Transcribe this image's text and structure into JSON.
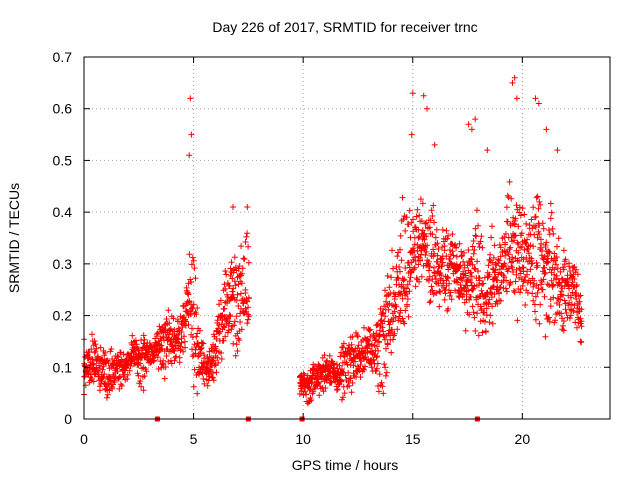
{
  "chart_data": {
    "type": "scatter",
    "title": "Day 226 of 2017, SRMTID for receiver trnc",
    "xlabel": "GPS time / hours",
    "ylabel": "SRMTID / TECUs",
    "xlim": [
      0,
      24
    ],
    "ylim": [
      0,
      0.7
    ],
    "xticks": [
      0,
      5,
      10,
      15,
      20
    ],
    "yticks": [
      0,
      0.1,
      0.2,
      0.3,
      0.4,
      0.5,
      0.6,
      0.7
    ],
    "ytick_labels": [
      "0",
      "0.1",
      "0.2",
      "0.3",
      "0.4",
      "0.5",
      "0.6",
      "0.7"
    ],
    "grid": true,
    "marker": "+",
    "color": "#ff0000",
    "gap_markers_x": [
      3.35,
      7.5,
      9.95,
      17.95
    ],
    "series": [
      {
        "name": "SRMTID",
        "segments": [
          {
            "x_start": 0.0,
            "x_end": 7.55,
            "interval_h": 0.01,
            "seed": 11,
            "envelope": [
              [
                0.0,
                0.09,
                0.07
              ],
              [
                0.5,
                0.1,
                0.05
              ],
              [
                1.5,
                0.09,
                0.05
              ],
              [
                2.5,
                0.11,
                0.05
              ],
              [
                3.5,
                0.13,
                0.06
              ],
              [
                4.3,
                0.16,
                0.08
              ],
              [
                4.8,
                0.22,
                0.12
              ],
              [
                5.2,
                0.14,
                0.08
              ],
              [
                5.6,
                0.1,
                0.05
              ],
              [
                6.2,
                0.18,
                0.07
              ],
              [
                6.7,
                0.25,
                0.1
              ],
              [
                7.3,
                0.22,
                0.09
              ],
              [
                7.55,
                0.2,
                0.08
              ]
            ]
          },
          {
            "x_start": 9.85,
            "x_end": 22.7,
            "interval_h": 0.01,
            "seed": 29,
            "envelope": [
              [
                9.85,
                0.07,
                0.03
              ],
              [
                10.5,
                0.08,
                0.04
              ],
              [
                11.5,
                0.1,
                0.05
              ],
              [
                12.5,
                0.12,
                0.05
              ],
              [
                13.5,
                0.16,
                0.07
              ],
              [
                14.2,
                0.24,
                0.1
              ],
              [
                14.8,
                0.28,
                0.12
              ],
              [
                15.5,
                0.3,
                0.12
              ],
              [
                16.5,
                0.28,
                0.11
              ],
              [
                17.5,
                0.27,
                0.11
              ],
              [
                18.5,
                0.29,
                0.12
              ],
              [
                19.5,
                0.33,
                0.14
              ],
              [
                20.5,
                0.32,
                0.13
              ],
              [
                21.5,
                0.28,
                0.12
              ],
              [
                22.2,
                0.24,
                0.1
              ],
              [
                22.7,
                0.18,
                0.08
              ]
            ]
          }
        ],
        "peaks": [
          [
            4.85,
            0.62
          ],
          [
            4.9,
            0.55
          ],
          [
            4.8,
            0.51
          ],
          [
            6.8,
            0.41
          ],
          [
            7.45,
            0.41
          ],
          [
            15.0,
            0.63
          ],
          [
            15.5,
            0.625
          ],
          [
            15.65,
            0.6
          ],
          [
            17.55,
            0.57
          ],
          [
            17.7,
            0.56
          ],
          [
            17.85,
            0.58
          ],
          [
            19.55,
            0.65
          ],
          [
            19.65,
            0.66
          ],
          [
            19.75,
            0.62
          ],
          [
            20.6,
            0.62
          ],
          [
            20.75,
            0.61
          ],
          [
            21.1,
            0.56
          ],
          [
            21.6,
            0.52
          ],
          [
            14.95,
            0.55
          ],
          [
            16.0,
            0.53
          ],
          [
            18.4,
            0.52
          ]
        ]
      }
    ]
  }
}
